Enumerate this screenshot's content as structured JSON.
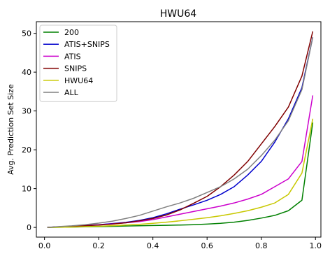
{
  "chart_data": {
    "type": "line",
    "title": "HWU64",
    "xlabel": "",
    "ylabel": "Avg. Prediction Set Size",
    "xlim": [
      -0.03,
      1.02
    ],
    "ylim": [
      -2.5,
      53
    ],
    "xticks": [
      0.0,
      0.2,
      0.4,
      0.6,
      0.8,
      1.0
    ],
    "xtick_labels": [
      "0.0",
      "0.2",
      "0.4",
      "0.6",
      "0.8",
      "1.0"
    ],
    "yticks": [
      0,
      10,
      20,
      30,
      40,
      50
    ],
    "ytick_labels": [
      "0",
      "10",
      "20",
      "30",
      "40",
      "50"
    ],
    "grid": false,
    "legend_position": "top-left",
    "x": [
      0.01,
      0.05,
      0.1,
      0.15,
      0.2,
      0.25,
      0.3,
      0.35,
      0.4,
      0.45,
      0.5,
      0.55,
      0.6,
      0.65,
      0.7,
      0.75,
      0.8,
      0.85,
      0.9,
      0.95,
      0.99
    ],
    "series": [
      {
        "name": "200",
        "color": "#008000",
        "values": [
          0.0,
          0.05,
          0.1,
          0.15,
          0.2,
          0.28,
          0.35,
          0.42,
          0.5,
          0.55,
          0.62,
          0.7,
          0.85,
          1.05,
          1.35,
          1.8,
          2.4,
          3.1,
          4.3,
          7.0,
          27.0
        ]
      },
      {
        "name": "ATIS+SNIPS",
        "color": "#0000cc",
        "values": [
          0.0,
          0.15,
          0.3,
          0.5,
          0.7,
          1.0,
          1.3,
          1.8,
          2.5,
          3.5,
          4.7,
          5.8,
          7.0,
          8.5,
          10.5,
          13.5,
          17.0,
          22.0,
          28.0,
          36.0,
          49.0
        ]
      },
      {
        "name": "ATIS",
        "color": "#cc00cc",
        "values": [
          0.0,
          0.15,
          0.3,
          0.45,
          0.65,
          0.9,
          1.2,
          1.5,
          2.0,
          2.7,
          3.4,
          4.1,
          4.8,
          5.5,
          6.3,
          7.3,
          8.5,
          10.5,
          12.5,
          17.0,
          34.0
        ]
      },
      {
        "name": "SNIPS",
        "color": "#800000",
        "values": [
          0.0,
          0.15,
          0.3,
          0.45,
          0.6,
          0.85,
          1.2,
          1.7,
          2.3,
          3.2,
          4.5,
          6.2,
          8.0,
          10.5,
          13.5,
          17.0,
          21.5,
          26.0,
          31.0,
          39.0,
          50.5
        ]
      },
      {
        "name": "HWU64",
        "color": "#c8c800",
        "values": [
          0.0,
          0.05,
          0.1,
          0.2,
          0.3,
          0.45,
          0.6,
          0.8,
          1.05,
          1.35,
          1.7,
          2.1,
          2.5,
          3.0,
          3.6,
          4.3,
          5.2,
          6.3,
          8.5,
          14.0,
          28.0
        ]
      },
      {
        "name": "ALL",
        "color": "#808080",
        "values": [
          0.0,
          0.2,
          0.4,
          0.7,
          1.1,
          1.6,
          2.3,
          3.1,
          4.2,
          5.3,
          6.3,
          7.5,
          9.0,
          10.5,
          12.5,
          15.0,
          18.5,
          22.5,
          27.5,
          35.5,
          49.0
        ]
      }
    ]
  }
}
